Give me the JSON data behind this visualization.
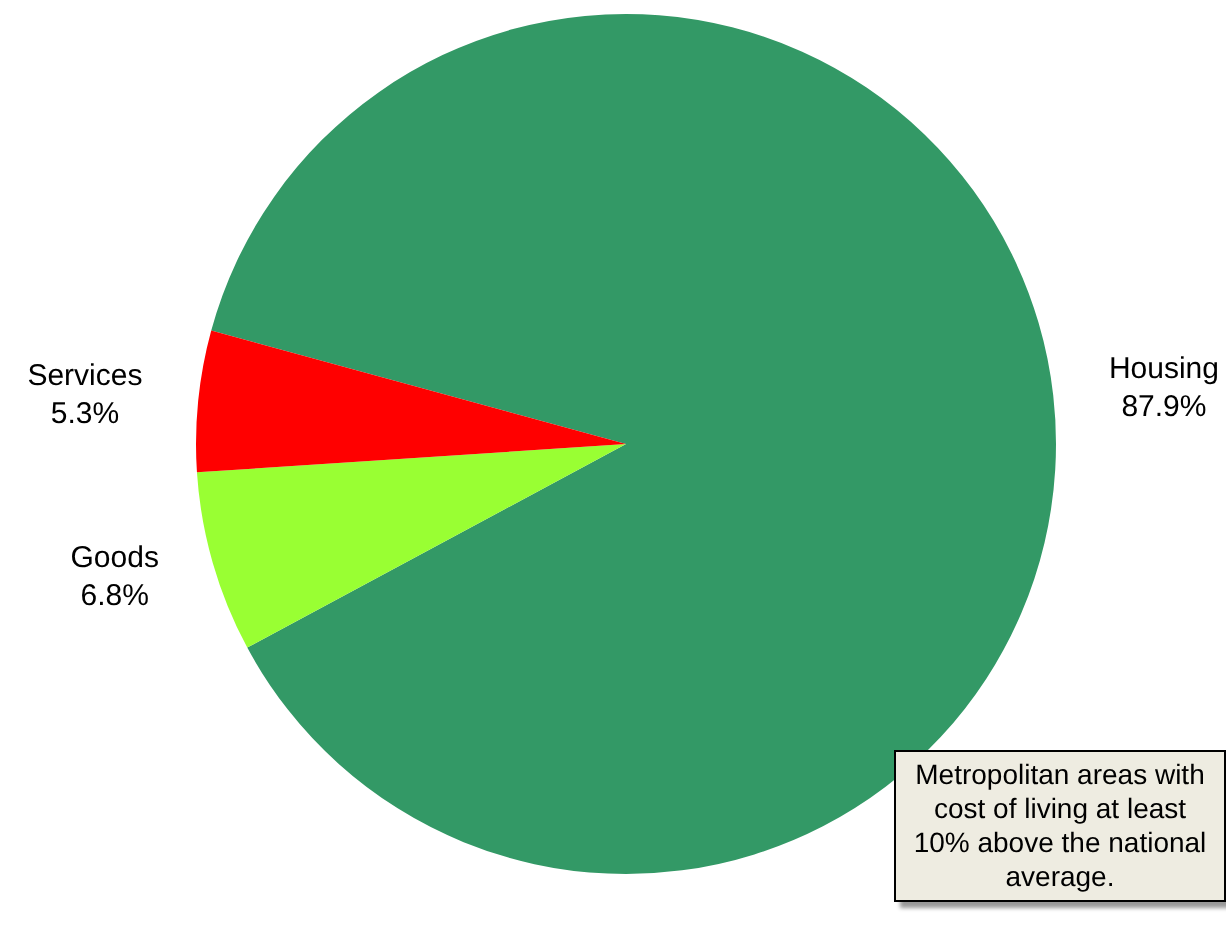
{
  "chart_data": {
    "type": "pie",
    "categories": [
      "Housing",
      "Goods",
      "Services"
    ],
    "values": [
      87.9,
      6.8,
      5.3
    ],
    "colors": [
      "#339966",
      "#99ff33",
      "#ff0000"
    ],
    "value_labels": [
      "87.9%",
      "6.8%",
      "5.3%"
    ],
    "legend": false,
    "annotations": [
      "Metropolitan areas with cost of living at least 10% above the national average."
    ]
  }
}
